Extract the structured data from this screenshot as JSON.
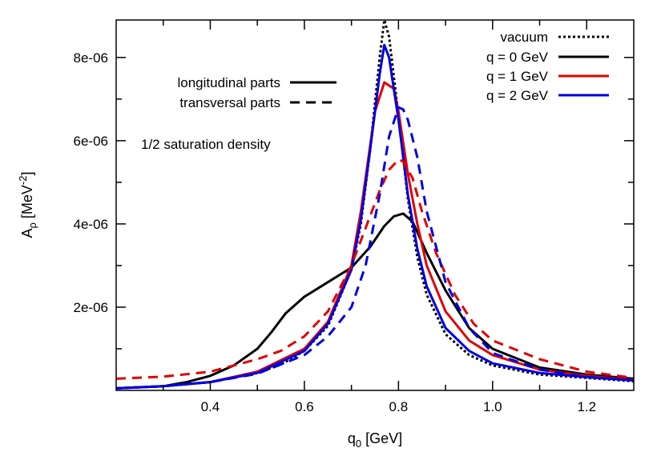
{
  "chart_data": {
    "type": "line",
    "xlabel": "q",
    "xlabel_sub": "0",
    "xlabel_unit": " [GeV]",
    "ylabel": "A",
    "ylabel_sub": "ρ",
    "ylabel_unit_open": " [MeV",
    "ylabel_unit_sup": "-2",
    "ylabel_unit_close": "]",
    "xlim": [
      0.2,
      1.3
    ],
    "ylim": [
      0,
      8.9e-06
    ],
    "grid": false,
    "x_ticks": [
      {
        "value": 0.4,
        "label": "0.4"
      },
      {
        "value": 0.6,
        "label": "0.6"
      },
      {
        "value": 0.8,
        "label": "0.8"
      },
      {
        "value": 1.0,
        "label": "1.0"
      },
      {
        "value": 1.2,
        "label": "1.2"
      }
    ],
    "x_minor_ticks": [
      0.3,
      0.5,
      0.7,
      0.9,
      1.1
    ],
    "y_ticks": [
      {
        "value": 2e-06,
        "label": "2e-06"
      },
      {
        "value": 4e-06,
        "label": "4e-06"
      },
      {
        "value": 6e-06,
        "label": "6e-06"
      },
      {
        "value": 8e-06,
        "label": "8e-06"
      }
    ],
    "y_minor_ticks": [
      1e-06,
      3e-06,
      5e-06,
      7e-06
    ],
    "legend": {
      "placement": "top-right",
      "entries": [
        {
          "label": "vacuum",
          "color": "#000000",
          "style": "dotted"
        },
        {
          "label": "q = 0 GeV",
          "color": "#000000",
          "style": "solid"
        },
        {
          "label": "q = 1 GeV",
          "color": "#e00000",
          "style": "solid"
        },
        {
          "label": "q = 2 GeV",
          "color": "#0000e0",
          "style": "solid"
        }
      ]
    },
    "style_key": {
      "placement": "top-left",
      "entries": [
        {
          "label": "longitudinal parts",
          "style": "solid"
        },
        {
          "label": "transversal parts",
          "style": "dashed"
        }
      ]
    },
    "annotation": "1/2 saturation density",
    "series": [
      {
        "id": "vacuum",
        "color": "#000000",
        "style": "dotted",
        "x": [
          0.2,
          0.3,
          0.4,
          0.5,
          0.55,
          0.6,
          0.65,
          0.7,
          0.72,
          0.74,
          0.76,
          0.77,
          0.78,
          0.8,
          0.82,
          0.84,
          0.86,
          0.9,
          0.95,
          1.0,
          1.1,
          1.2,
          1.3
        ],
        "y": [
          5e-08,
          1e-07,
          2e-07,
          4.2e-07,
          6.2e-07,
          9.5e-07,
          1.55e-06,
          2.9e-06,
          4e-06,
          5.8e-06,
          8e-06,
          8.9e-06,
          8.5e-06,
          6.6e-06,
          4.6e-06,
          3.2e-06,
          2.3e-06,
          1.35e-06,
          8.5e-07,
          6e-07,
          3.8e-07,
          3e-07,
          2.2e-07
        ]
      },
      {
        "id": "q0-longitudinal",
        "color": "#000000",
        "style": "solid",
        "x": [
          0.2,
          0.3,
          0.35,
          0.4,
          0.45,
          0.5,
          0.53,
          0.56,
          0.6,
          0.65,
          0.7,
          0.74,
          0.77,
          0.79,
          0.81,
          0.83,
          0.86,
          0.9,
          0.95,
          1.0,
          1.1,
          1.2,
          1.3
        ],
        "y": [
          5e-08,
          1e-07,
          2e-07,
          3.5e-07,
          6e-07,
          1e-06,
          1.4e-06,
          1.85e-06,
          2.25e-06,
          2.6e-06,
          2.95e-06,
          3.45e-06,
          3.95e-06,
          4.18e-06,
          4.25e-06,
          4.05e-06,
          3.3e-06,
          2.4e-06,
          1.5e-06,
          1e-06,
          5.5e-07,
          3.8e-07,
          2.8e-07
        ]
      },
      {
        "id": "q1-longitudinal",
        "color": "#e00000",
        "style": "solid",
        "x": [
          0.2,
          0.3,
          0.4,
          0.5,
          0.6,
          0.65,
          0.7,
          0.72,
          0.75,
          0.77,
          0.79,
          0.8,
          0.82,
          0.84,
          0.86,
          0.9,
          0.95,
          1.0,
          1.1,
          1.2,
          1.3
        ],
        "y": [
          5e-08,
          1e-07,
          2e-07,
          4.5e-07,
          1e-06,
          1.65e-06,
          3e-06,
          4.3e-06,
          6.7e-06,
          7.4e-06,
          7.25e-06,
          6.7e-06,
          5.2e-06,
          4e-06,
          3e-06,
          1.9e-06,
          1.2e-06,
          8.5e-07,
          5e-07,
          3.5e-07,
          2.5e-07
        ]
      },
      {
        "id": "q2-longitudinal",
        "color": "#0000e0",
        "style": "solid",
        "x": [
          0.2,
          0.3,
          0.4,
          0.5,
          0.6,
          0.65,
          0.7,
          0.72,
          0.74,
          0.76,
          0.77,
          0.78,
          0.8,
          0.82,
          0.84,
          0.86,
          0.9,
          0.95,
          1.0,
          1.1,
          1.2,
          1.3
        ],
        "y": [
          5e-08,
          1e-07,
          2e-07,
          4.2e-07,
          9.5e-07,
          1.6e-06,
          2.9e-06,
          4.1e-06,
          5.8e-06,
          7.6e-06,
          8.3e-06,
          8e-06,
          6.5e-06,
          4.7e-06,
          3.4e-06,
          2.5e-06,
          1.5e-06,
          9.5e-07,
          6.5e-07,
          4.2e-07,
          3.2e-07,
          2.4e-07
        ]
      },
      {
        "id": "q1-transversal",
        "color": "#e00000",
        "style": "dashed",
        "x": [
          0.2,
          0.3,
          0.4,
          0.5,
          0.55,
          0.6,
          0.65,
          0.7,
          0.73,
          0.76,
          0.78,
          0.8,
          0.81,
          0.83,
          0.85,
          0.88,
          0.92,
          0.96,
          1.0,
          1.1,
          1.2,
          1.3
        ],
        "y": [
          2.8e-07,
          3.3e-07,
          4.5e-07,
          7.5e-07,
          9.5e-07,
          1.3e-06,
          1.9e-06,
          3e-06,
          3.9e-06,
          4.8e-06,
          5.3e-06,
          5.55e-06,
          5.5e-06,
          5.1e-06,
          4.3e-06,
          3.3e-06,
          2.3e-06,
          1.6e-06,
          1.2e-06,
          7.5e-07,
          4.5e-07,
          3e-07
        ]
      },
      {
        "id": "q2-transversal",
        "color": "#0000e0",
        "style": "dashed",
        "x": [
          0.2,
          0.3,
          0.4,
          0.5,
          0.6,
          0.65,
          0.7,
          0.73,
          0.76,
          0.78,
          0.8,
          0.81,
          0.82,
          0.84,
          0.86,
          0.9,
          0.95,
          1.0,
          1.1,
          1.2,
          1.3
        ],
        "y": [
          5e-08,
          1e-07,
          2e-07,
          4e-07,
          8.5e-07,
          1.3e-06,
          2e-06,
          3e-06,
          4.7e-06,
          6.1e-06,
          6.8e-06,
          6.75e-06,
          6.5e-06,
          5.6e-06,
          4.3e-06,
          2.6e-06,
          1.5e-06,
          9e-07,
          5e-07,
          3.2e-07,
          2.4e-07
        ]
      }
    ]
  }
}
